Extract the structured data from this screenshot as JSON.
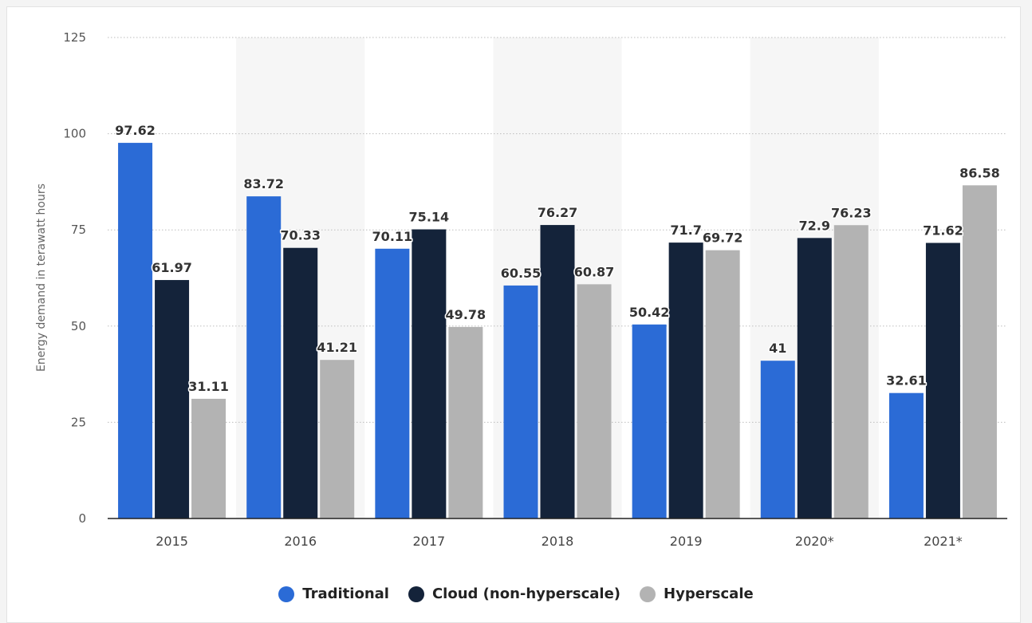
{
  "chart_data": {
    "type": "bar",
    "title": "",
    "xlabel": "",
    "ylabel": "Energy demand in terawatt hours",
    "categories": [
      "2015",
      "2016",
      "2017",
      "2018",
      "2019",
      "2020*",
      "2021*"
    ],
    "ylim": [
      0,
      125
    ],
    "yticks": [
      "0",
      "25",
      "50",
      "75",
      "100",
      "125"
    ],
    "grid": true,
    "legend_position": "bottom",
    "series": [
      {
        "name": "Traditional",
        "color": "#2b6bd6",
        "values": [
          97.62,
          83.72,
          70.11,
          60.55,
          50.42,
          41,
          32.61
        ]
      },
      {
        "name": "Cloud (non-hyperscale)",
        "color": "#14233a",
        "values": [
          61.97,
          70.33,
          75.14,
          76.27,
          71.7,
          72.9,
          71.62
        ]
      },
      {
        "name": "Hyperscale",
        "color": "#b3b3b3",
        "values": [
          31.11,
          41.21,
          49.78,
          60.87,
          69.72,
          76.23,
          86.58
        ]
      }
    ]
  }
}
